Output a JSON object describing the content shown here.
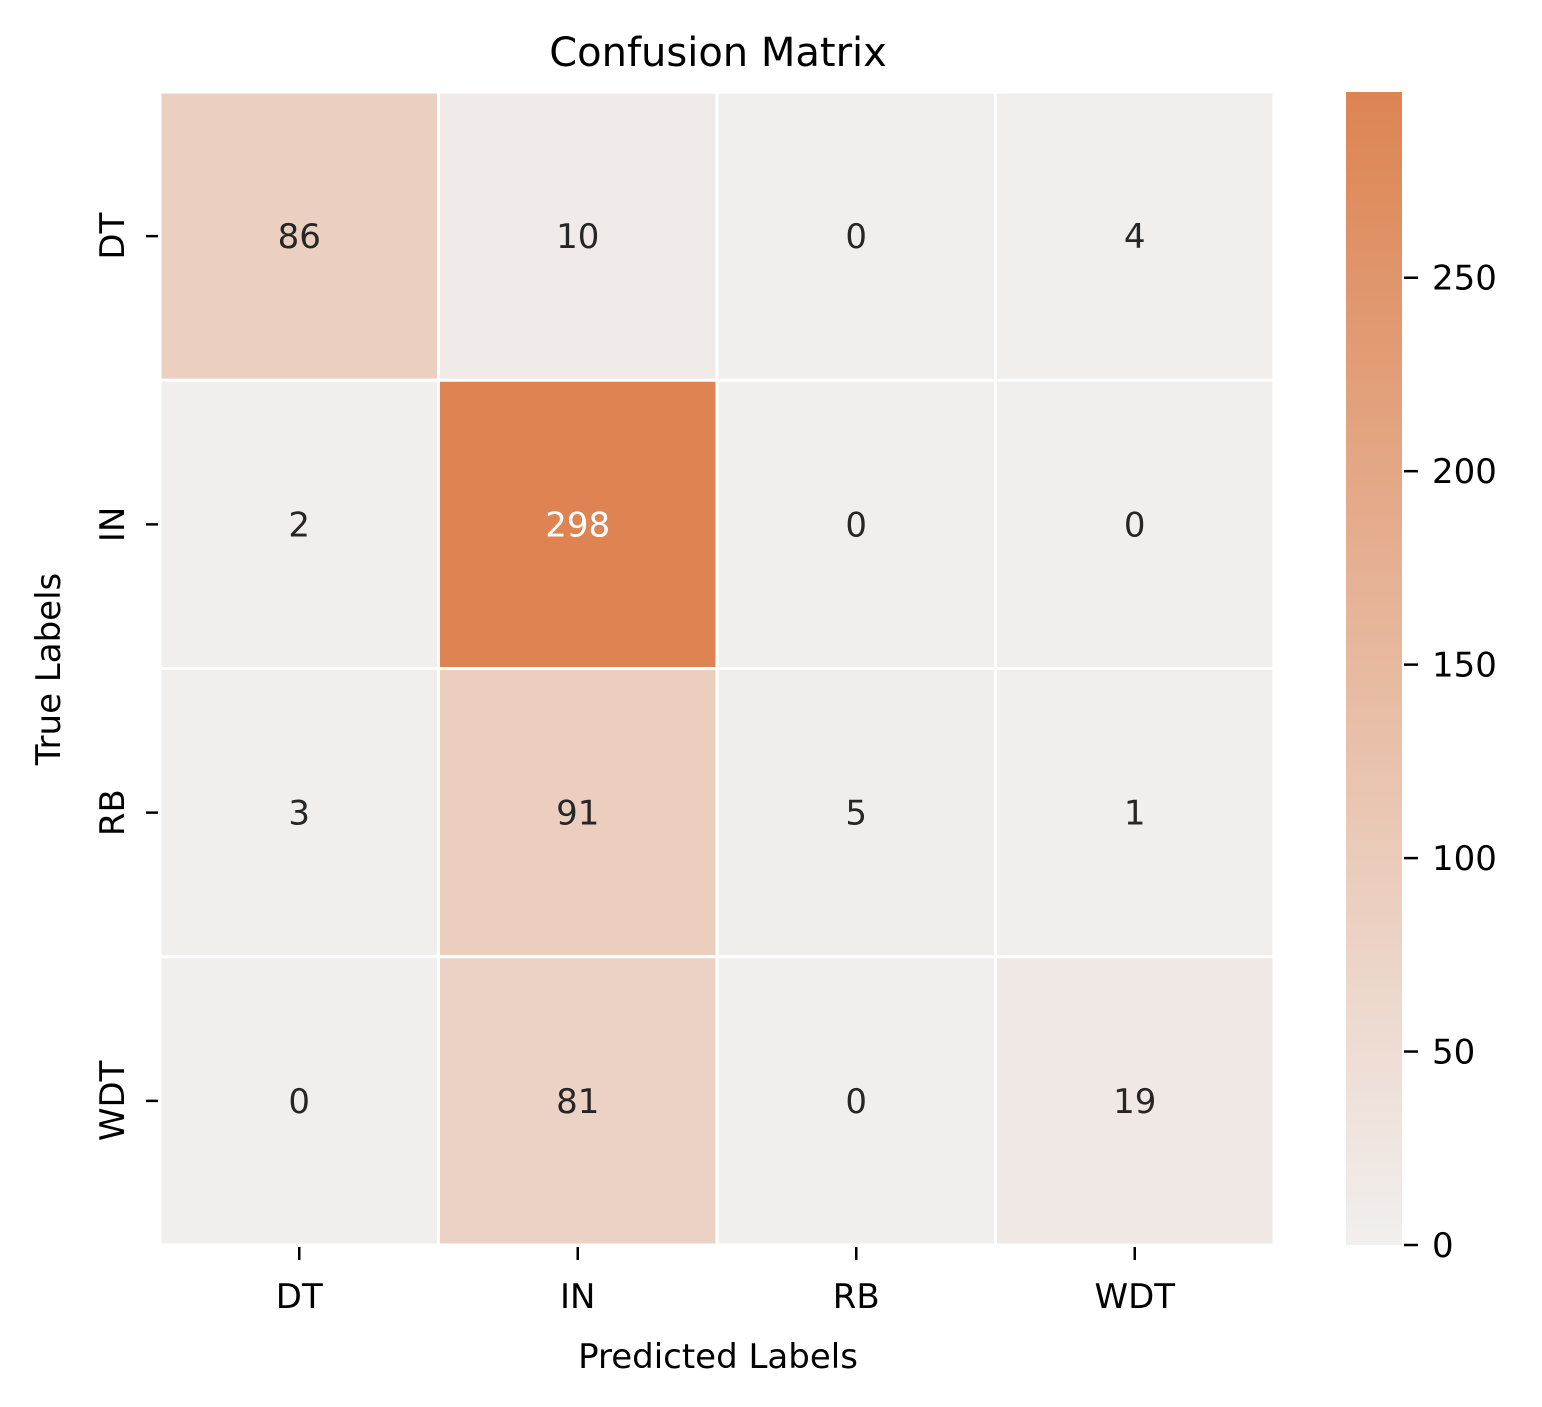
{
  "chart_data": {
    "type": "heatmap",
    "title": "Confusion Matrix",
    "xlabel": "Predicted Labels",
    "ylabel": "True Labels",
    "x_categories": [
      "DT",
      "IN",
      "RB",
      "WDT"
    ],
    "y_categories": [
      "DT",
      "IN",
      "RB",
      "WDT"
    ],
    "values": [
      [
        86,
        10,
        0,
        4
      ],
      [
        2,
        298,
        0,
        0
      ],
      [
        3,
        91,
        5,
        1
      ],
      [
        0,
        81,
        0,
        19
      ]
    ],
    "colorbar": {
      "min": 0,
      "max": 298,
      "ticks": [
        0,
        50,
        100,
        150,
        200,
        250
      ]
    },
    "colors": {
      "low": "#f1efee",
      "high": "#dd8452",
      "cell_border": "#ffffff",
      "annotation_dark": "#262626",
      "annotation_light": "#ffffff"
    }
  }
}
